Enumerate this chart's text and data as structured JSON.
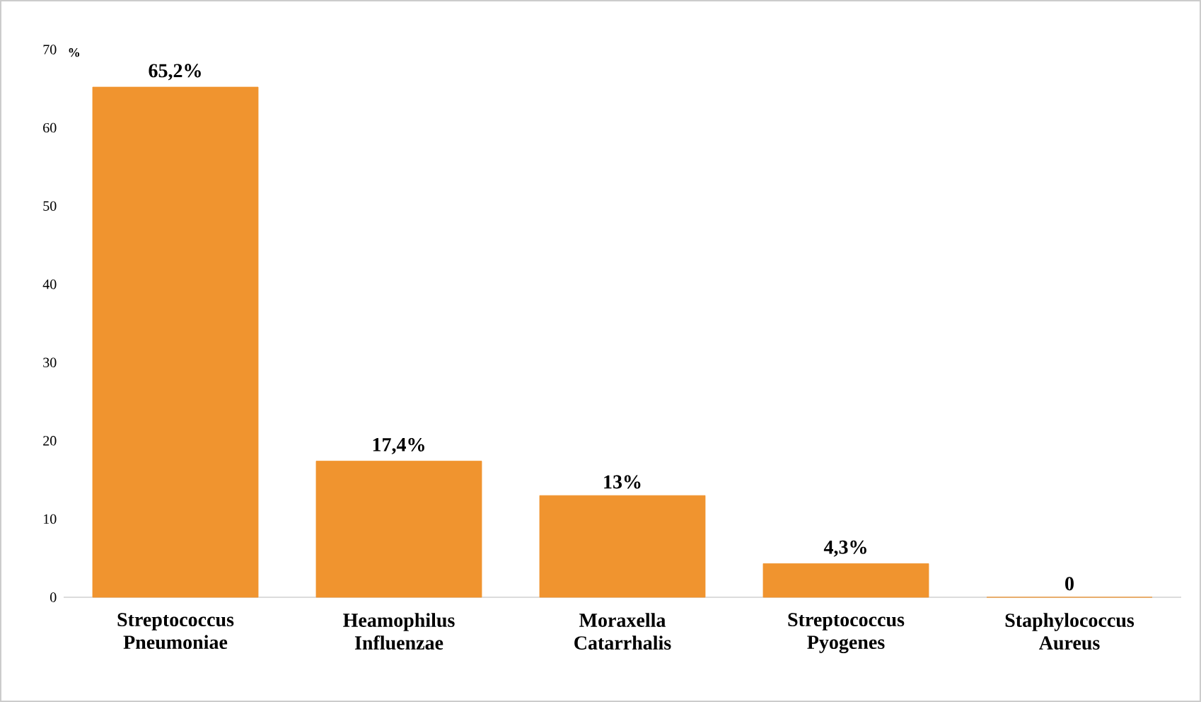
{
  "chart_data": {
    "type": "bar",
    "ylabel": "%",
    "categories": [
      "Streptococcus Pneumoniae",
      "Heamophilus Influenzae",
      "Moraxella Catarrhalis",
      "Streptococcus Pyogenes",
      "Staphylococcus Aureus"
    ],
    "values": [
      65.2,
      17.4,
      13,
      4.3,
      0
    ],
    "value_labels": [
      "65,2%",
      "17,4%",
      "13%",
      "4,3%",
      "0"
    ],
    "color": "#f0942f",
    "ylim": [
      0,
      70
    ],
    "yticks": [
      0,
      10,
      20,
      30,
      40,
      50,
      60,
      70
    ],
    "grid": false
  }
}
